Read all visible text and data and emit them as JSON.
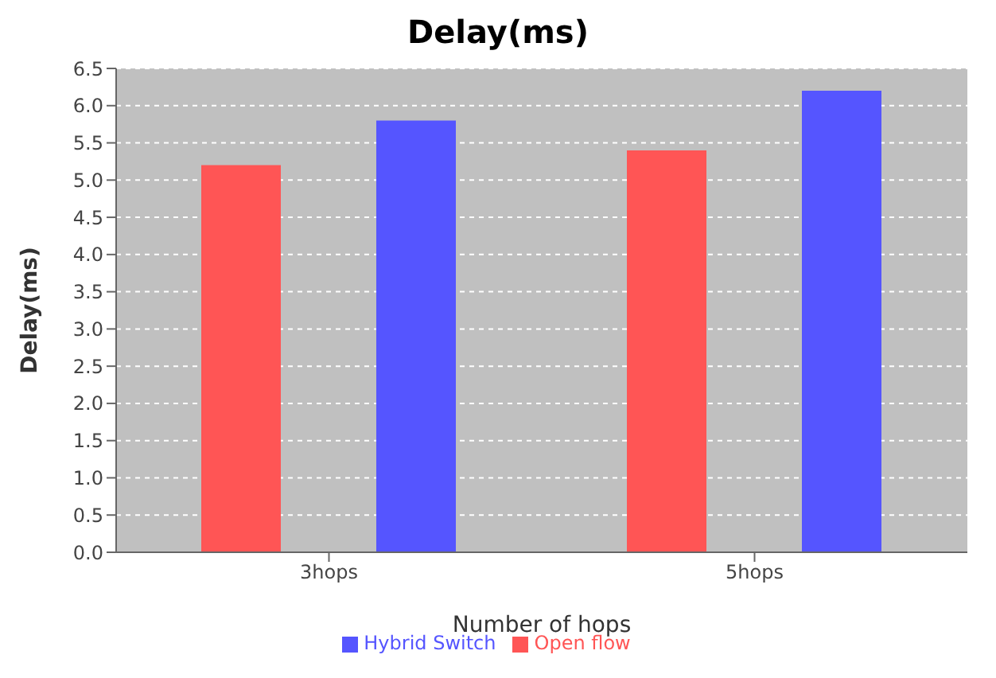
{
  "chart_data": {
    "type": "bar",
    "title": "Delay(ms)",
    "xlabel": "Number of hops",
    "ylabel": "Delay(ms)",
    "categories": [
      "3hops",
      "5hops"
    ],
    "series": [
      {
        "name": "Open flow",
        "color": "#ff5555",
        "values": [
          5.2,
          5.4
        ]
      },
      {
        "name": "Hybrid Switch",
        "color": "#5555ff",
        "values": [
          5.8,
          6.2
        ]
      }
    ],
    "ylim": [
      0,
      6.5
    ],
    "yticks": [
      {
        "value": 0,
        "label": "0.0"
      },
      {
        "value": 0.5,
        "label": "0.5"
      },
      {
        "value": 1,
        "label": "1.0"
      },
      {
        "value": 1.5,
        "label": "1.5"
      },
      {
        "value": 2,
        "label": "2.0"
      },
      {
        "value": 2.5,
        "label": "2.5"
      },
      {
        "value": 3,
        "label": "3.0"
      },
      {
        "value": 3.5,
        "label": "3.5"
      },
      {
        "value": 4,
        "label": "4.0"
      },
      {
        "value": 4.5,
        "label": "4.5"
      },
      {
        "value": 5,
        "label": "5.0"
      },
      {
        "value": 5.5,
        "label": "5.5"
      },
      {
        "value": 6,
        "label": "6.0"
      },
      {
        "value": 6.5,
        "label": "6.5"
      }
    ],
    "grid": "y",
    "legend": "bottom"
  }
}
